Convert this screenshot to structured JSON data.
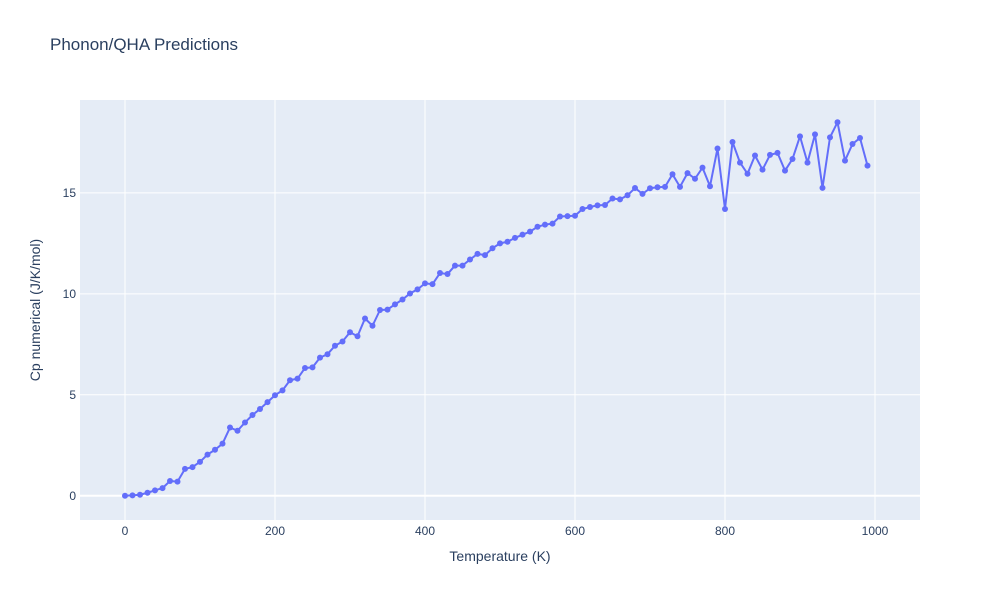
{
  "chart_data": {
    "type": "line",
    "title": "Phonon/QHA Predictions",
    "xlabel": "Temperature (K)",
    "ylabel": "Cp numerical (J/K/mol)",
    "xlim": [
      -60,
      1060
    ],
    "ylim": [
      -1.2,
      19.6
    ],
    "xticks": [
      0,
      200,
      400,
      600,
      800,
      1000
    ],
    "xtick_labels": [
      "0",
      "200",
      "400",
      "600",
      "800",
      "1000"
    ],
    "yticks": [
      0,
      5,
      10,
      15
    ],
    "ytick_labels": [
      "0",
      "5",
      "10",
      "15"
    ],
    "grid": true,
    "legend": "none",
    "series": [
      {
        "name": "Cp numerical",
        "color": "#636efa",
        "mode": "lines+markers",
        "x": [
          0,
          10,
          20,
          30,
          40,
          50,
          60,
          70,
          80,
          90,
          100,
          110,
          120,
          130,
          140,
          150,
          160,
          170,
          180,
          190,
          200,
          210,
          220,
          230,
          240,
          250,
          260,
          270,
          280,
          290,
          300,
          310,
          320,
          330,
          340,
          350,
          360,
          370,
          380,
          390,
          400,
          410,
          420,
          430,
          440,
          450,
          460,
          470,
          480,
          490,
          500,
          510,
          520,
          530,
          540,
          550,
          560,
          570,
          580,
          590,
          600,
          610,
          620,
          630,
          640,
          650,
          660,
          670,
          680,
          690,
          700,
          710,
          720,
          730,
          740,
          750,
          760,
          770,
          780,
          790,
          800,
          810,
          820,
          830,
          840,
          850,
          860,
          870,
          880,
          890,
          900,
          910,
          920,
          930,
          940,
          950,
          960,
          970,
          980,
          990
        ],
        "y": [
          0.0,
          0.02,
          0.05,
          0.15,
          0.27,
          0.38,
          0.73,
          0.7,
          1.33,
          1.42,
          1.68,
          2.04,
          2.28,
          2.58,
          3.38,
          3.22,
          3.63,
          4.0,
          4.3,
          4.64,
          4.98,
          5.22,
          5.72,
          5.8,
          6.33,
          6.36,
          6.84,
          7.01,
          7.43,
          7.64,
          8.1,
          7.9,
          8.78,
          8.42,
          9.2,
          9.22,
          9.48,
          9.72,
          10.02,
          10.22,
          10.52,
          10.48,
          11.03,
          10.98,
          11.4,
          11.4,
          11.7,
          11.98,
          11.92,
          12.26,
          12.5,
          12.58,
          12.77,
          12.93,
          13.08,
          13.32,
          13.43,
          13.48,
          13.83,
          13.85,
          13.87,
          14.2,
          14.3,
          14.38,
          14.4,
          14.72,
          14.68,
          14.88,
          15.24,
          14.95,
          15.23,
          15.28,
          15.3,
          15.92,
          15.3,
          15.98,
          15.7,
          16.25,
          15.33,
          17.2,
          14.2,
          17.52,
          16.5,
          15.95,
          16.85,
          16.15,
          16.88,
          16.98,
          16.1,
          16.68,
          17.8,
          16.5,
          17.9,
          15.25,
          17.75,
          18.5,
          16.6,
          17.42,
          17.72,
          16.35
        ]
      }
    ]
  }
}
